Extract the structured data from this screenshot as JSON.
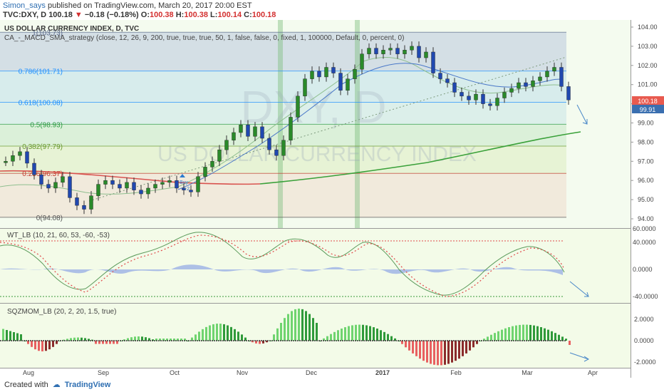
{
  "header": {
    "author": "Simon_says",
    "published": "published on TradingView.com, March 20, 2017 20:00 EST",
    "symbol": "TVC:DXY, D",
    "price": "100.18",
    "change": "−0.18 (−0.18%)",
    "o_label": "O:",
    "o": "100.38",
    "h_label": "H:",
    "h": "100.38",
    "l_label": "L:",
    "l": "100.14",
    "c_label": "C:",
    "c": "100.18"
  },
  "main_legend": {
    "title": "US DOLLAR CURRENCY INDEX, D, TVC",
    "strategy": "CA_-_MACD_SMA_strategy (close, 12, 26, 9, 200, true, true, true, 50, 1, false, false, 0, fixed, 1, 100000, Default, 0, percent, 0)"
  },
  "watermark": {
    "big": "DXY, D",
    "small": "US DOLLAR CURRENCY INDEX"
  },
  "fib_levels": [
    {
      "label": "1(103.73)",
      "value": 103.73,
      "color": "#5b6a8a"
    },
    {
      "label": "0.786(101.71)",
      "value": 101.71,
      "color": "#1e90ff"
    },
    {
      "label": "0.618(100.08)",
      "value": 100.08,
      "color": "#1e90ff"
    },
    {
      "label": "0.5(98.93)",
      "value": 98.93,
      "color": "#2e9a44"
    },
    {
      "label": "0.382(97.79)",
      "value": 97.79,
      "color": "#6a9a2e"
    },
    {
      "label": "0.236(96.37)",
      "value": 96.37,
      "color": "#c0392b"
    },
    {
      "label": "0(94.08)",
      "value": 94.08,
      "color": "#555555"
    }
  ],
  "price_badges": {
    "current": "100.18",
    "second": "99.91"
  },
  "signal_label": {
    "text": "Buy",
    "count": "+2"
  },
  "wt_legend": "WT_LB (10, 21, 60, 53, -60, -53)",
  "sqz_legend": "SQZMOM_LB (20, 2, 20, 1.5, true)",
  "x_ticks": [
    "Aug",
    "Sep",
    "Oct",
    "Nov",
    "Dec",
    "2017",
    "Feb",
    "Mar",
    "Apr"
  ],
  "footer": {
    "created_with": "Created with",
    "brand": "TradingView"
  },
  "chart_data": [
    {
      "type": "candlestick",
      "title": "US DOLLAR CURRENCY INDEX, D, TVC",
      "y_ticks": [
        "104.00",
        "103.00",
        "102.00",
        "101.00",
        "100.00",
        "99.00",
        "98.00",
        "97.00",
        "96.00",
        "95.00",
        "94.00"
      ],
      "ylim": [
        93.7,
        104.2
      ],
      "series": [
        {
          "name": "close (approx)",
          "x": [
            0,
            5,
            10,
            15,
            20,
            25,
            30,
            35,
            40,
            45,
            50,
            55,
            60,
            65,
            70,
            75,
            80,
            85,
            90,
            95,
            100,
            105,
            110,
            115,
            120,
            125,
            130,
            135,
            140,
            145,
            150,
            155,
            160,
            165,
            170,
            175,
            180,
            185,
            190,
            195,
            200,
            205,
            210,
            215,
            220,
            225,
            230,
            235,
            240,
            245,
            250,
            255,
            260,
            265,
            270,
            275,
            280,
            285,
            290,
            295,
            300,
            305,
            310,
            315,
            320,
            325,
            330,
            335,
            340,
            345,
            350,
            355,
            360,
            365,
            370,
            375,
            380,
            385,
            390,
            395
          ],
          "values": [
            97.0,
            97.3,
            97.5,
            96.9,
            96.3,
            95.8,
            95.6,
            95.9,
            96.2,
            95.1,
            94.7,
            94.5,
            95.2,
            95.8,
            96.0,
            95.8,
            95.6,
            95.9,
            95.5,
            95.3,
            95.6,
            95.8,
            95.9,
            96.0,
            95.6,
            95.5,
            95.4,
            96.2,
            96.7,
            97.0,
            97.6,
            98.1,
            98.5,
            98.9,
            98.3,
            98.8,
            98.2,
            97.6,
            97.3,
            98.1,
            99.3,
            100.4,
            101.3,
            101.7,
            101.4,
            101.9,
            101.6,
            100.7,
            101.3,
            101.8,
            102.6,
            102.9,
            102.6,
            102.8,
            102.9,
            102.6,
            102.8,
            103.0,
            102.4,
            102.7,
            101.6,
            101.3,
            101.1,
            100.6,
            100.4,
            100.2,
            100.5,
            100.0,
            99.9,
            100.3,
            100.6,
            100.8,
            101.1,
            100.9,
            101.2,
            101.4,
            101.7,
            101.9,
            100.9,
            100.2
          ]
        }
      ]
    },
    {
      "type": "line",
      "title": "WT_LB (10, 21, 60, 53, -60, -53)",
      "y_ticks": [
        "60.0000",
        "40.0000",
        "0.0000",
        "-40.0000"
      ],
      "ylim": [
        -60,
        60
      ]
    },
    {
      "type": "bar",
      "title": "SQZMOM_LB (20, 2, 20, 1.5, true)",
      "y_ticks": [
        "2.0000",
        "0.0000",
        "-2.0000"
      ],
      "ylim": [
        -2.4,
        3.0
      ]
    }
  ]
}
